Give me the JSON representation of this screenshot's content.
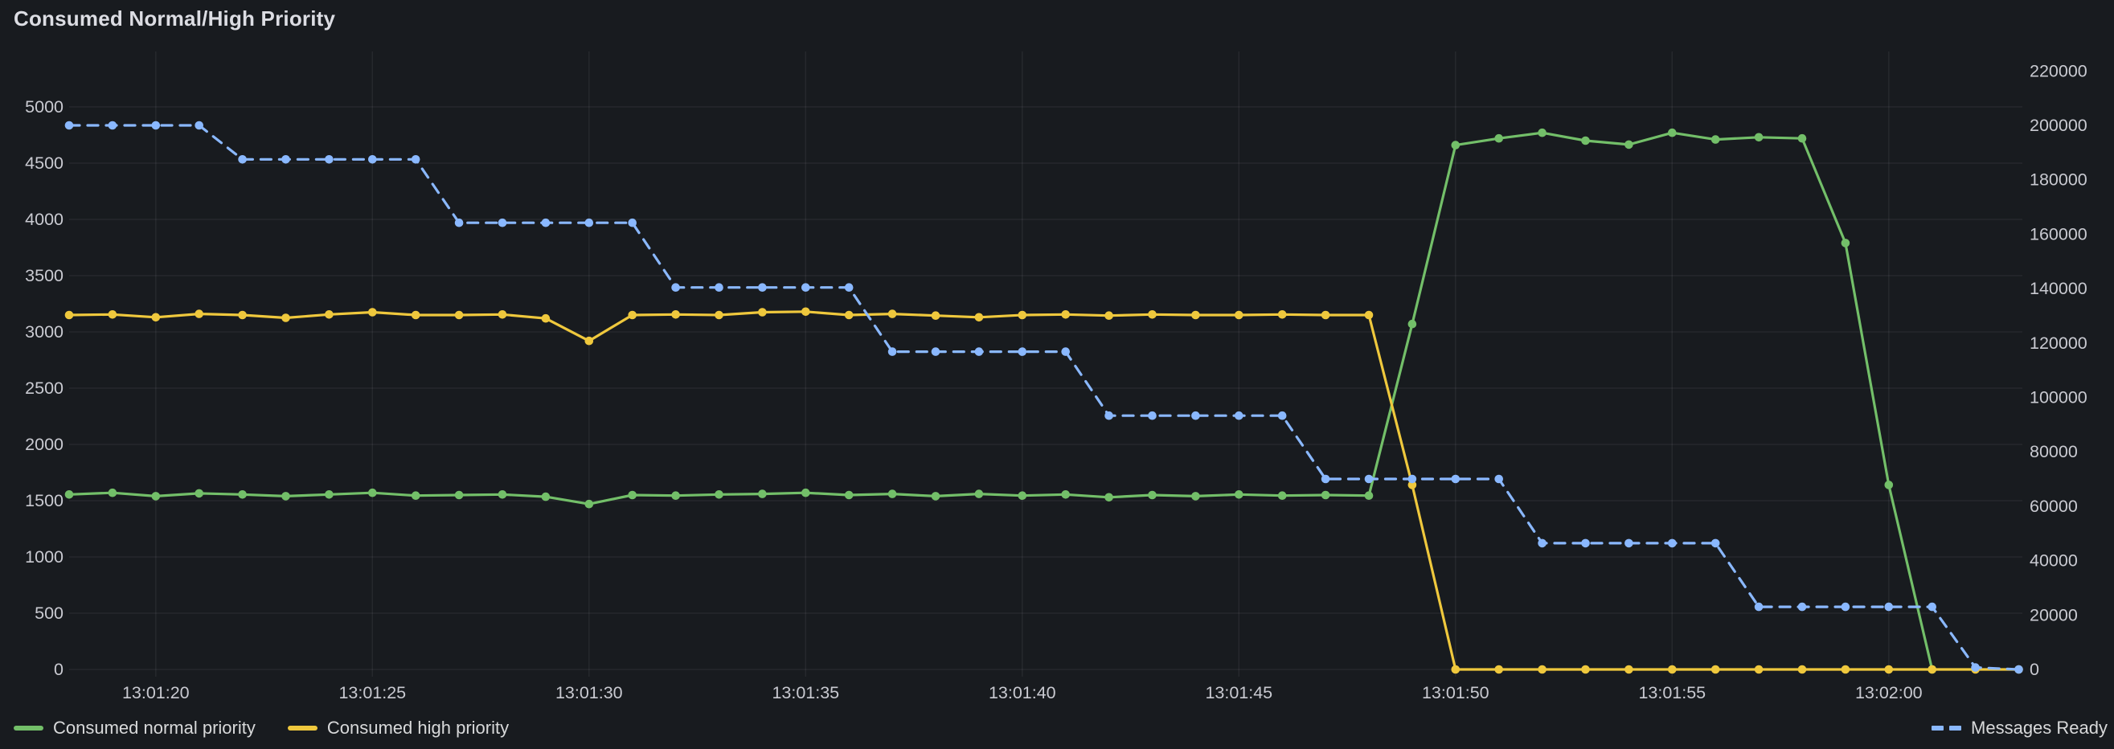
{
  "title": "Consumed Normal/High Priority",
  "colors": {
    "background": "#181b1f",
    "title_text": "#dcdde3",
    "axis_text": "#c9cad1",
    "grid": "rgba(204,204,220,0.08)",
    "green": "#73BF69",
    "yellow": "#EFC83D",
    "blue": "#8AB8FF"
  },
  "legend": {
    "items": [
      {
        "label": "Consumed normal priority",
        "color": "#73BF69",
        "style": "solid"
      },
      {
        "label": "Consumed high priority",
        "color": "#EFC83D",
        "style": "solid"
      },
      {
        "label": "Messages Ready",
        "color": "#8AB8FF",
        "style": "dashed"
      }
    ]
  },
  "chart_data": {
    "type": "line",
    "title": "Consumed Normal/High Priority",
    "grid": true,
    "legend_position": "bottom",
    "x": [
      "13:01:18",
      "13:01:19",
      "13:01:20",
      "13:01:21",
      "13:01:22",
      "13:01:23",
      "13:01:24",
      "13:01:25",
      "13:01:26",
      "13:01:27",
      "13:01:28",
      "13:01:29",
      "13:01:30",
      "13:01:31",
      "13:01:32",
      "13:01:33",
      "13:01:34",
      "13:01:35",
      "13:01:36",
      "13:01:37",
      "13:01:38",
      "13:01:39",
      "13:01:40",
      "13:01:41",
      "13:01:42",
      "13:01:43",
      "13:01:44",
      "13:01:45",
      "13:01:46",
      "13:01:47",
      "13:01:48",
      "13:01:49",
      "13:01:50",
      "13:01:51",
      "13:01:52",
      "13:01:53",
      "13:01:54",
      "13:01:55",
      "13:01:56",
      "13:01:57",
      "13:01:58",
      "13:01:59",
      "13:02:00",
      "13:02:01",
      "13:02:02",
      "13:02:03"
    ],
    "x_ticks": [
      {
        "label": "13:01:20",
        "index": 2
      },
      {
        "label": "13:01:25",
        "index": 7
      },
      {
        "label": "13:01:30",
        "index": 12
      },
      {
        "label": "13:01:35",
        "index": 17
      },
      {
        "label": "13:01:40",
        "index": 22
      },
      {
        "label": "13:01:45",
        "index": 27
      },
      {
        "label": "13:01:50",
        "index": 32
      },
      {
        "label": "13:01:55",
        "index": 37
      },
      {
        "label": "13:02:00",
        "index": 42
      }
    ],
    "y_left": {
      "range": [
        0,
        5000
      ],
      "ticks": [
        0,
        500,
        1000,
        1500,
        2000,
        2500,
        3000,
        3500,
        4000,
        4500,
        5000
      ]
    },
    "y_right": {
      "range": [
        0,
        220000
      ],
      "ticks": [
        0,
        20000,
        40000,
        60000,
        80000,
        100000,
        120000,
        140000,
        160000,
        180000,
        200000,
        220000
      ]
    },
    "series": [
      {
        "name": "Consumed normal priority",
        "axis": "left",
        "color": "#73BF69",
        "style": "solid",
        "values": [
          1555,
          1570,
          1540,
          1565,
          1555,
          1540,
          1555,
          1570,
          1545,
          1550,
          1555,
          1535,
          1470,
          1550,
          1545,
          1555,
          1560,
          1570,
          1550,
          1560,
          1540,
          1560,
          1545,
          1555,
          1530,
          1550,
          1540,
          1555,
          1545,
          1550,
          1545,
          3070,
          4660,
          4720,
          4770,
          4700,
          4665,
          4770,
          4710,
          4730,
          4720,
          3790,
          1640,
          0,
          null,
          null
        ]
      },
      {
        "name": "Consumed high priority",
        "axis": "left",
        "color": "#EFC83D",
        "style": "solid",
        "values": [
          3150,
          3155,
          3130,
          3160,
          3150,
          3125,
          3155,
          3175,
          3150,
          3150,
          3155,
          3120,
          2920,
          3150,
          3155,
          3150,
          3175,
          3180,
          3150,
          3160,
          3145,
          3130,
          3150,
          3155,
          3145,
          3155,
          3150,
          3150,
          3155,
          3150,
          3150,
          1640,
          0,
          0,
          0,
          0,
          0,
          0,
          0,
          0,
          0,
          0,
          0,
          0,
          0,
          0
        ]
      },
      {
        "name": "Messages Ready",
        "axis": "right",
        "color": "#8AB8FF",
        "style": "dashed",
        "values": [
          200000,
          200000,
          200000,
          200000,
          187500,
          187500,
          187500,
          187500,
          187500,
          164200,
          164200,
          164200,
          164200,
          164200,
          140400,
          140400,
          140400,
          140400,
          140400,
          116800,
          116800,
          116800,
          116800,
          116800,
          93300,
          93300,
          93300,
          93300,
          93300,
          70000,
          70000,
          70000,
          70000,
          70000,
          46400,
          46400,
          46400,
          46400,
          46400,
          23000,
          23000,
          23000,
          23000,
          23000,
          700,
          0
        ]
      }
    ]
  }
}
